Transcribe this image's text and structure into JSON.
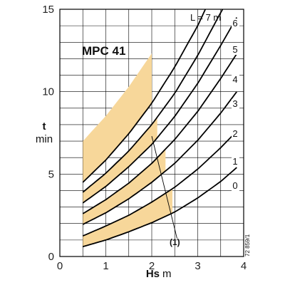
{
  "chart_data": {
    "type": "line",
    "title": "MPC 41",
    "xlabel": "Hs",
    "xunit": "m",
    "ylabel": "t",
    "yunit": "min",
    "xlim": [
      0,
      4
    ],
    "ylim": [
      0,
      15
    ],
    "x_ticks": [
      0,
      1,
      2,
      3,
      4
    ],
    "y_ticks": [
      0,
      5,
      10,
      15
    ],
    "grid": true,
    "legend_text": "L = 7 m",
    "annotation": "(1)",
    "figure_code": "72 859/1",
    "colors": {
      "highlight": "#f7d79a",
      "line": "#000000",
      "grid": "#000000"
    },
    "series": [
      {
        "name": "0",
        "x": [
          0.5,
          1.0,
          1.5,
          2.0,
          2.5,
          3.0,
          3.5,
          3.85
        ],
        "y": [
          0.6,
          1.0,
          1.5,
          2.05,
          2.7,
          3.55,
          4.55,
          5.4
        ]
      },
      {
        "name": "1",
        "x": [
          0.5,
          1.0,
          1.5,
          2.0,
          2.5,
          3.0,
          3.5,
          3.85
        ],
        "y": [
          1.25,
          1.85,
          2.5,
          3.3,
          4.2,
          5.3,
          6.6,
          7.6
        ]
      },
      {
        "name": "2",
        "x": [
          0.5,
          1.0,
          1.5,
          2.0,
          2.5,
          3.0,
          3.5,
          3.85
        ],
        "y": [
          1.95,
          2.65,
          3.5,
          4.5,
          5.65,
          7.05,
          8.7,
          10.0
        ]
      },
      {
        "name": "3",
        "x": [
          0.5,
          1.0,
          1.5,
          2.0,
          2.5,
          3.0,
          3.5,
          3.85
        ],
        "y": [
          2.6,
          3.45,
          4.45,
          5.65,
          7.1,
          8.8,
          10.8,
          12.3
        ]
      },
      {
        "name": "4",
        "x": [
          0.5,
          1.0,
          1.5,
          2.0,
          2.5,
          3.0,
          3.5,
          3.85
        ],
        "y": [
          3.25,
          4.25,
          5.45,
          6.8,
          8.5,
          10.5,
          12.8,
          14.5
        ]
      },
      {
        "name": "5",
        "x": [
          0.5,
          1.0,
          1.5,
          2.0,
          2.5,
          3.0,
          3.5,
          3.75
        ],
        "y": [
          3.9,
          5.05,
          6.4,
          8.0,
          9.9,
          12.2,
          14.8,
          16.0
        ]
      },
      {
        "name": "6",
        "x": [
          0.5,
          1.0,
          1.5,
          2.0,
          2.5,
          3.0,
          3.3
        ],
        "y": [
          4.5,
          5.85,
          7.45,
          9.3,
          11.5,
          14.0,
          15.8
        ]
      }
    ],
    "curve_labels": [
      "0",
      "1",
      "2",
      "3",
      "4",
      "5",
      "6"
    ],
    "curve_label_positions": [
      {
        "x": 3.72,
        "y": 5.9
      },
      {
        "x": 3.72,
        "y": 8.3
      },
      {
        "x": 3.72,
        "y": 10.8
      },
      {
        "x": 3.72,
        "y": 13.3
      },
      {
        "x": 3.72,
        "y": 15.7
      },
      {
        "x": 3.72,
        "y": 18.0
      },
      {
        "x": 3.72,
        "y": 20.3
      }
    ],
    "shaded_bands": [
      {
        "x": [
          0.5,
          2.45
        ],
        "between": [
          "0",
          "1"
        ]
      },
      {
        "x": [
          0.5,
          2.3
        ],
        "between": [
          "2",
          "3"
        ]
      },
      {
        "x": [
          0.5,
          2.12
        ],
        "between": [
          "4",
          "5"
        ]
      },
      {
        "x": [
          0.5,
          2.0
        ],
        "between": [
          "6",
          "upper"
        ]
      }
    ]
  }
}
